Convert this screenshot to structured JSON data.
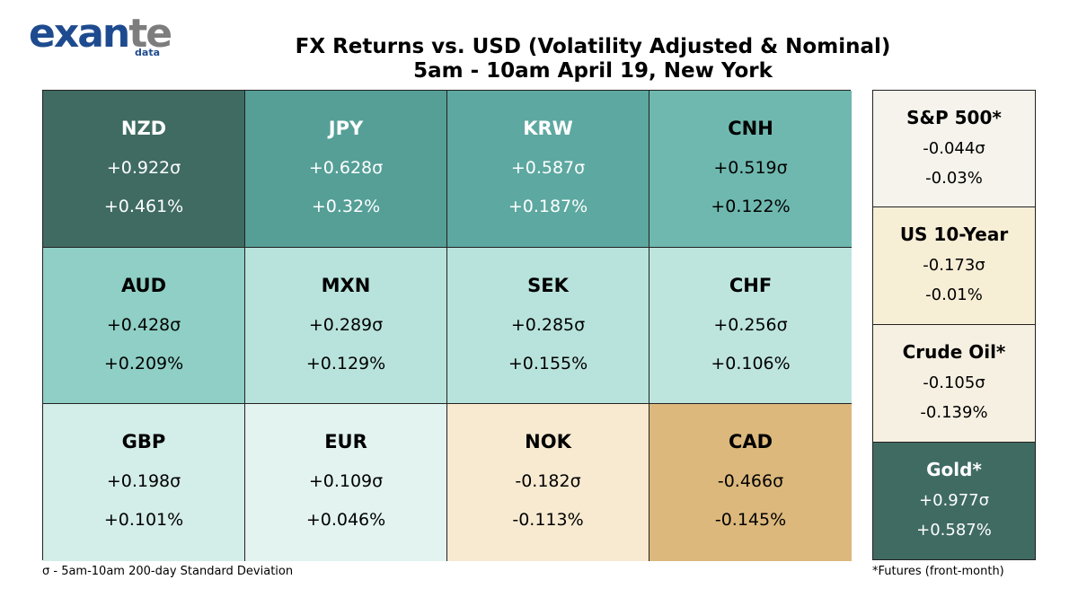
{
  "logo": {
    "word_blue": "exan",
    "word_gray": "te",
    "sub": "data"
  },
  "title_line1": "FX Returns vs. USD (Volatility Adjusted & Nominal)",
  "title_line2": "5am - 10am April 19, New York",
  "footnote_left": "σ - 5am-10am 200-day Standard Deviation",
  "footnote_right": "*Futures (front-month)",
  "chart_data": {
    "type": "table",
    "columns": [
      "code",
      "vol_adjusted",
      "nominal"
    ],
    "currencies": [
      {
        "code": "NZD",
        "vol_adjusted": "+0.922σ",
        "nominal": "+0.461%",
        "color": "#3f6b62",
        "text_color": "#ffffff"
      },
      {
        "code": "JPY",
        "vol_adjusted": "+0.628σ",
        "nominal": "+0.32%",
        "color": "#559f97",
        "text_color": "#ffffff"
      },
      {
        "code": "KRW",
        "vol_adjusted": "+0.587σ",
        "nominal": "+0.187%",
        "color": "#5da8a0",
        "text_color": "#ffffff"
      },
      {
        "code": "CNH",
        "vol_adjusted": "+0.519σ",
        "nominal": "+0.122%",
        "color": "#6fb8af",
        "text_color": "#000000"
      },
      {
        "code": "AUD",
        "vol_adjusted": "+0.428σ",
        "nominal": "+0.209%",
        "color": "#8fcfc5",
        "text_color": "#000000"
      },
      {
        "code": "MXN",
        "vol_adjusted": "+0.289σ",
        "nominal": "+0.129%",
        "color": "#b8e3dc",
        "text_color": "#000000"
      },
      {
        "code": "SEK",
        "vol_adjusted": "+0.285σ",
        "nominal": "+0.155%",
        "color": "#b8e3dc",
        "text_color": "#000000"
      },
      {
        "code": "CHF",
        "vol_adjusted": "+0.256σ",
        "nominal": "+0.106%",
        "color": "#bde5de",
        "text_color": "#000000"
      },
      {
        "code": "GBP",
        "vol_adjusted": "+0.198σ",
        "nominal": "+0.101%",
        "color": "#d3ede8",
        "text_color": "#000000"
      },
      {
        "code": "EUR",
        "vol_adjusted": "+0.109σ",
        "nominal": "+0.046%",
        "color": "#e2f3f0",
        "text_color": "#000000"
      },
      {
        "code": "NOK",
        "vol_adjusted": "-0.182σ",
        "nominal": "-0.113%",
        "color": "#f7ead0",
        "text_color": "#000000"
      },
      {
        "code": "CAD",
        "vol_adjusted": "-0.466σ",
        "nominal": "-0.145%",
        "color": "#dcb87c",
        "text_color": "#000000"
      }
    ],
    "other_assets": [
      {
        "name": "S&P 500*",
        "vol_adjusted": "-0.044σ",
        "nominal": "-0.03%",
        "color": "#f6f3ec",
        "text_color": "#000000"
      },
      {
        "name": "US 10-Year",
        "vol_adjusted": "-0.173σ",
        "nominal": "-0.01%",
        "color": "#f7eed6",
        "text_color": "#000000"
      },
      {
        "name": "Crude Oil*",
        "vol_adjusted": "-0.105σ",
        "nominal": "-0.139%",
        "color": "#f6f0e2",
        "text_color": "#000000"
      },
      {
        "name": "Gold*",
        "vol_adjusted": "+0.977σ",
        "nominal": "+0.587%",
        "color": "#3f6b62",
        "text_color": "#ffffff"
      }
    ]
  }
}
